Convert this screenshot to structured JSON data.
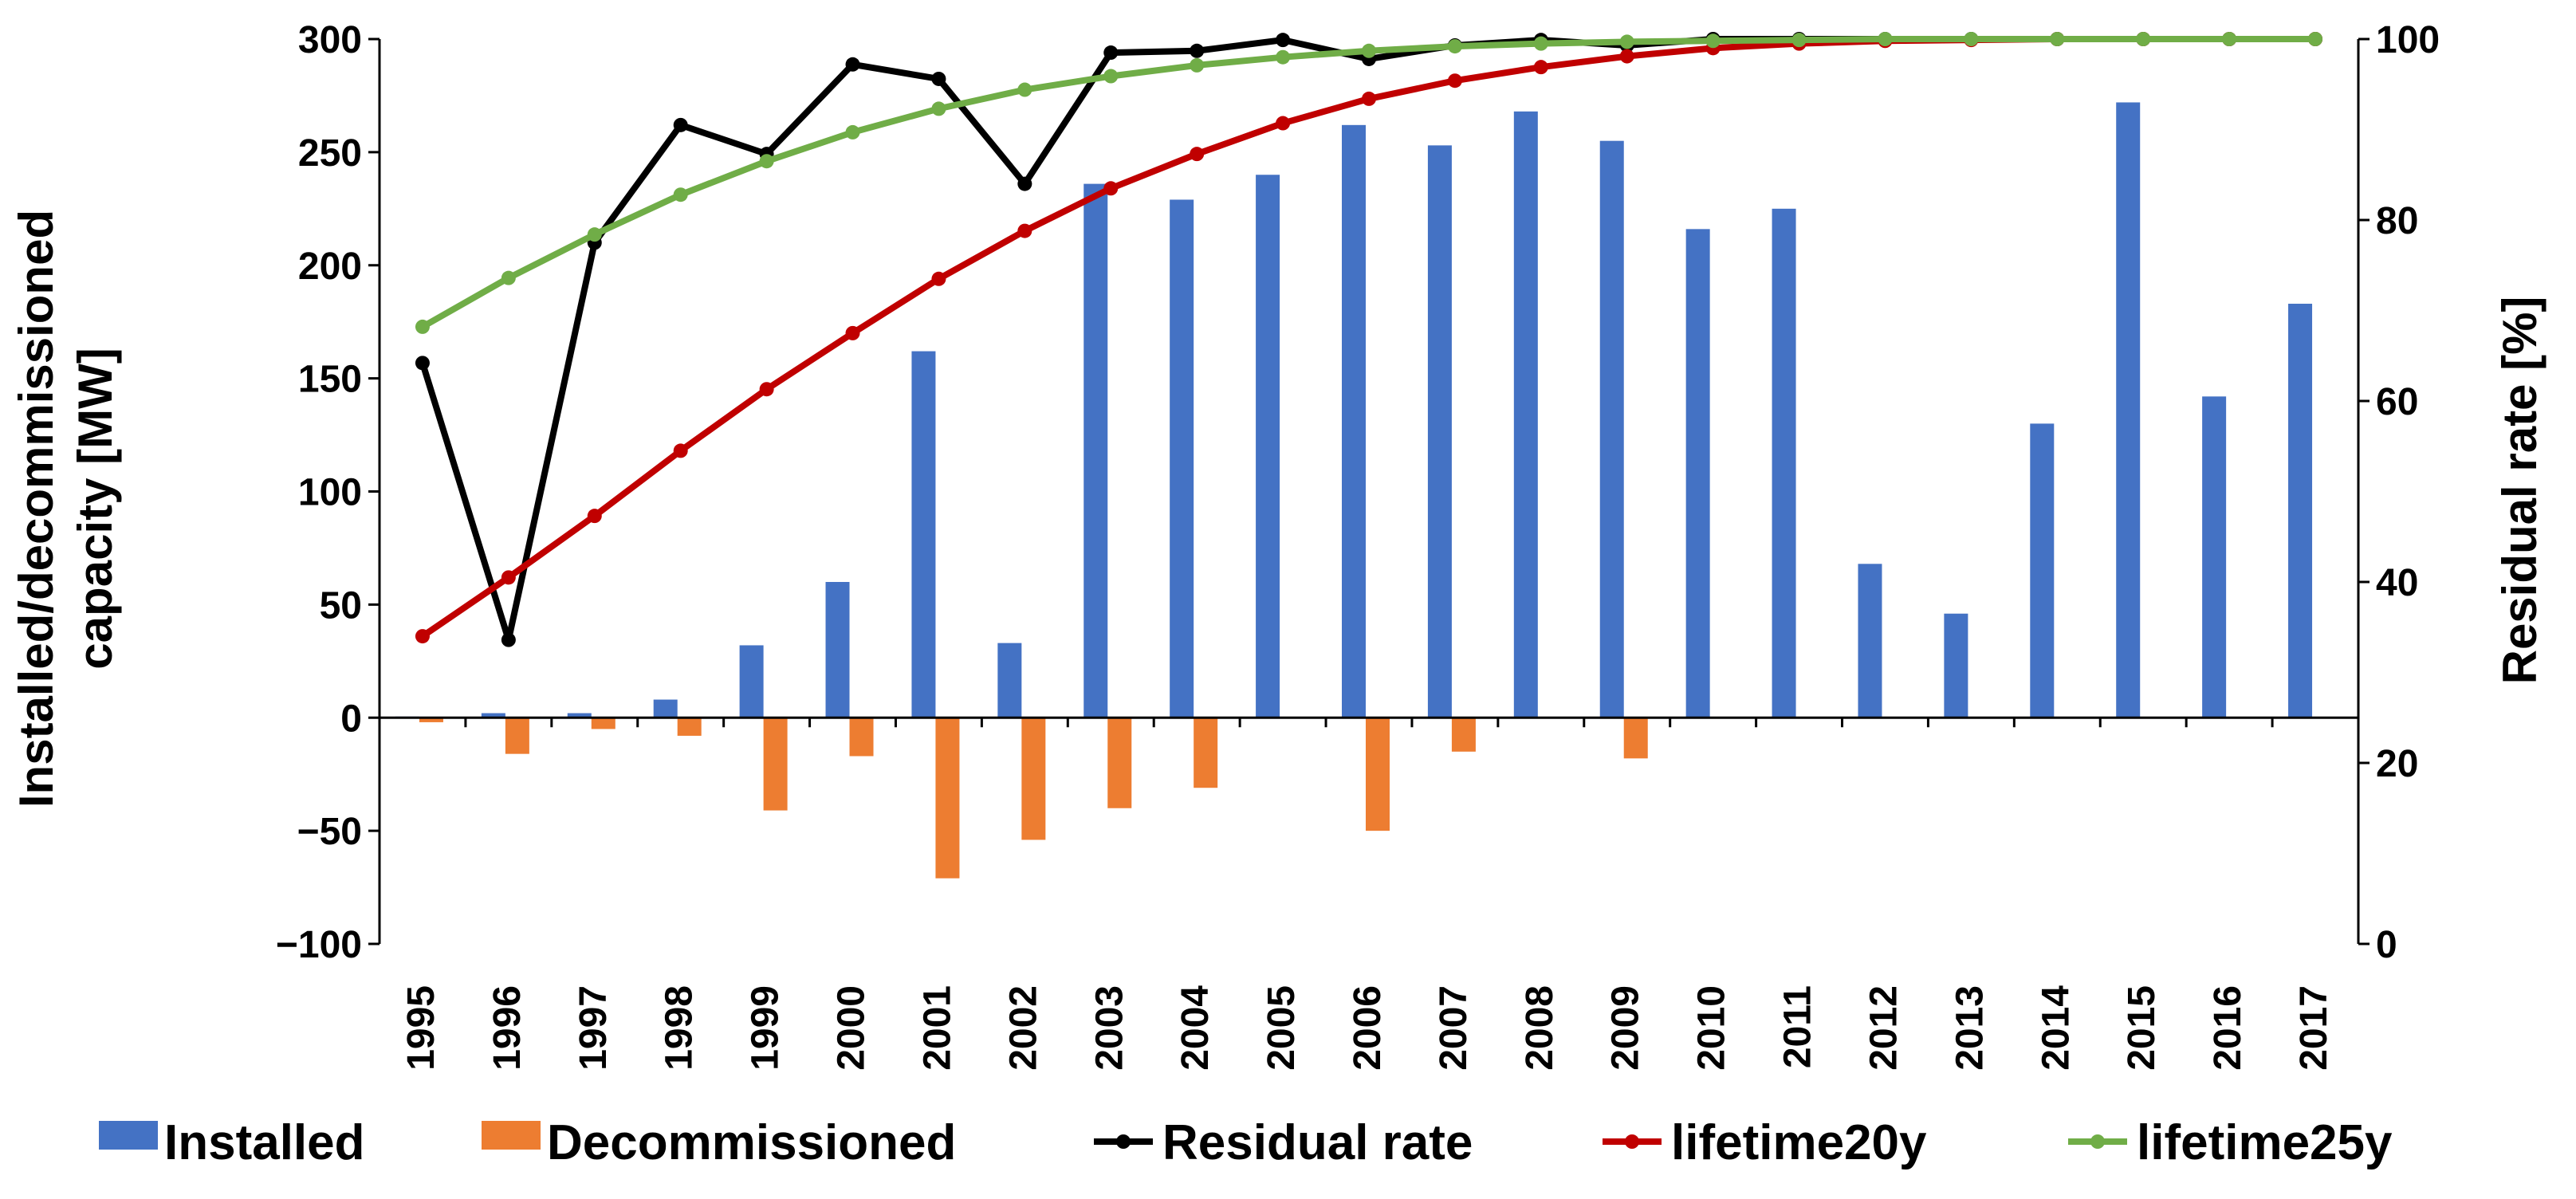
{
  "chart_data": {
    "type": "bar",
    "categories": [
      "1995",
      "1996",
      "1997",
      "1998",
      "1999",
      "2000",
      "2001",
      "2002",
      "2003",
      "2004",
      "2005",
      "2006",
      "2007",
      "2008",
      "2009",
      "2010",
      "2011",
      "2012",
      "2013",
      "2014",
      "2015",
      "2016",
      "2017"
    ],
    "bar_series": [
      {
        "name": "Installed",
        "color": "#4472c4",
        "axis": "left",
        "values": [
          0.5,
          2,
          2,
          8,
          32,
          60,
          162,
          33,
          236,
          229,
          240,
          262,
          253,
          268,
          255,
          216,
          225,
          68,
          46,
          130,
          272,
          142,
          183
        ]
      },
      {
        "name": "Decommissioned",
        "color": "#ed7d31",
        "axis": "left",
        "values": [
          -2,
          -16,
          -5,
          -8,
          -41,
          -17,
          -71,
          -54,
          -40,
          -31,
          0,
          -50,
          -15,
          0,
          -18,
          0,
          0,
          0,
          0,
          0,
          0,
          0,
          0
        ]
      }
    ],
    "line_series": [
      {
        "name": "Residual rate",
        "color": "#000000",
        "axis": "right",
        "values": [
          64.2,
          33.6,
          77.5,
          90.5,
          87.3,
          97.2,
          95.6,
          84,
          98.5,
          98.7,
          99.9,
          97.8,
          99.3,
          99.9,
          99.3,
          100,
          100,
          100,
          100,
          100,
          100,
          100,
          100
        ]
      },
      {
        "name": "lifetime20y",
        "color": "#c00000",
        "axis": "right",
        "values": [
          34,
          40.5,
          47.3,
          54.5,
          61.3,
          67.5,
          73.5,
          78.8,
          83.5,
          87.3,
          90.7,
          93.4,
          95.4,
          96.9,
          98.1,
          99,
          99.5,
          99.8,
          99.9,
          100,
          100,
          100,
          100
        ]
      },
      {
        "name": "lifetime25y",
        "color": "#70ad47",
        "axis": "right",
        "values": [
          68.2,
          73.6,
          78.4,
          82.8,
          86.5,
          89.7,
          92.3,
          94.4,
          95.9,
          97.1,
          98,
          98.7,
          99.2,
          99.5,
          99.7,
          99.8,
          99.9,
          100,
          100,
          100,
          100,
          100,
          100
        ]
      }
    ],
    "left_axis": {
      "label": "Installed/decommissioned capacity [MW]",
      "label_lines": [
        "Installed/decommissioned",
        "capacity [MW]"
      ],
      "min": -100,
      "max": 300,
      "ticks": [
        -100,
        -50,
        0,
        50,
        100,
        150,
        200,
        250,
        300
      ],
      "tick_labels": [
        "−100",
        "−50",
        "0",
        "50",
        "100",
        "150",
        "200",
        "250",
        "300"
      ]
    },
    "right_axis": {
      "label": "Residual rate [%]",
      "min": 0,
      "max": 100,
      "ticks": [
        0,
        20,
        40,
        60,
        80,
        100
      ],
      "tick_labels": [
        "0",
        "20",
        "40",
        "60",
        "80",
        "100"
      ]
    },
    "grid": false,
    "legend_position": "bottom",
    "legend": [
      "Installed",
      "Decommissioned",
      "Residual rate",
      "lifetime20y",
      "lifetime25y"
    ]
  }
}
